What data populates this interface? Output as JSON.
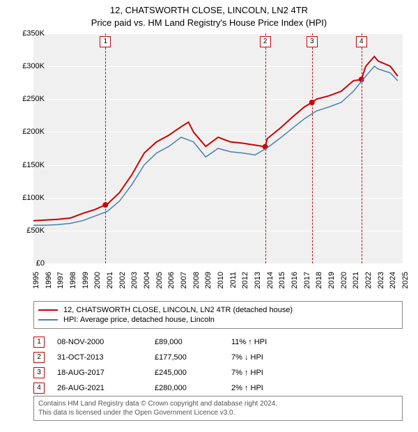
{
  "title_line1": "12, CHATSWORTH CLOSE, LINCOLN, LN2 4TR",
  "title_line2": "Price paid vs. HM Land Registry's House Price Index (HPI)",
  "chart": {
    "type": "line",
    "background_color": "#f0f0f0",
    "grid_color": "#ffffff",
    "ylim": [
      0,
      350000
    ],
    "ytick_step": 50000,
    "y_prefix": "£",
    "y_suffix": "K",
    "xlim": [
      1995,
      2025
    ],
    "xtick_step": 1,
    "series": [
      {
        "name": "12, CHATSWORTH CLOSE, LINCOLN, LN2 4TR (detached house)",
        "color": "#cc0000",
        "line_width": 2,
        "data": [
          [
            1995,
            65000
          ],
          [
            1996,
            66000
          ],
          [
            1997,
            67000
          ],
          [
            1998,
            69000
          ],
          [
            1999,
            76000
          ],
          [
            2000,
            82000
          ],
          [
            2000.85,
            89000
          ],
          [
            2001,
            90000
          ],
          [
            2002,
            108000
          ],
          [
            2003,
            135000
          ],
          [
            2004,
            168000
          ],
          [
            2005,
            185000
          ],
          [
            2006,
            195000
          ],
          [
            2007,
            208000
          ],
          [
            2007.6,
            215000
          ],
          [
            2008,
            200000
          ],
          [
            2009,
            178000
          ],
          [
            2010,
            192000
          ],
          [
            2011,
            185000
          ],
          [
            2012,
            183000
          ],
          [
            2013,
            180000
          ],
          [
            2013.83,
            177500
          ],
          [
            2014,
            190000
          ],
          [
            2015,
            205000
          ],
          [
            2016,
            222000
          ],
          [
            2017,
            238000
          ],
          [
            2017.63,
            245000
          ],
          [
            2018,
            250000
          ],
          [
            2019,
            255000
          ],
          [
            2020,
            262000
          ],
          [
            2021,
            278000
          ],
          [
            2021.65,
            280000
          ],
          [
            2022,
            300000
          ],
          [
            2022.7,
            315000
          ],
          [
            2023,
            308000
          ],
          [
            2024,
            300000
          ],
          [
            2024.6,
            285000
          ]
        ]
      },
      {
        "name": "HPI: Average price, detached house, Lincoln",
        "color": "#4a7fb0",
        "line_width": 1.5,
        "data": [
          [
            1995,
            58000
          ],
          [
            1996,
            58000
          ],
          [
            1997,
            59000
          ],
          [
            1998,
            61000
          ],
          [
            1999,
            65000
          ],
          [
            2000,
            72000
          ],
          [
            2001,
            79000
          ],
          [
            2002,
            95000
          ],
          [
            2003,
            120000
          ],
          [
            2004,
            150000
          ],
          [
            2005,
            168000
          ],
          [
            2006,
            178000
          ],
          [
            2007,
            192000
          ],
          [
            2008,
            185000
          ],
          [
            2009,
            162000
          ],
          [
            2010,
            175000
          ],
          [
            2011,
            170000
          ],
          [
            2012,
            168000
          ],
          [
            2013,
            165000
          ],
          [
            2014,
            176000
          ],
          [
            2015,
            190000
          ],
          [
            2016,
            205000
          ],
          [
            2017,
            220000
          ],
          [
            2018,
            232000
          ],
          [
            2019,
            238000
          ],
          [
            2020,
            245000
          ],
          [
            2021,
            262000
          ],
          [
            2022,
            285000
          ],
          [
            2022.7,
            300000
          ],
          [
            2023,
            296000
          ],
          [
            2024,
            290000
          ],
          [
            2024.6,
            278000
          ]
        ]
      }
    ],
    "markers": [
      {
        "n": "1",
        "year": 2000.85,
        "price": 89000
      },
      {
        "n": "2",
        "year": 2013.83,
        "price": 177500
      },
      {
        "n": "3",
        "year": 2017.63,
        "price": 245000
      },
      {
        "n": "4",
        "year": 2021.65,
        "price": 280000
      }
    ],
    "marker_dot_color": "#cc0000",
    "marker_dot_radius": 4
  },
  "legend": {
    "border_color": "#888888"
  },
  "transactions": [
    {
      "n": "1",
      "date": "08-NOV-2000",
      "price": "£89,000",
      "delta": "11% ↑ HPI"
    },
    {
      "n": "2",
      "date": "31-OCT-2013",
      "price": "£177,500",
      "delta": "7% ↓ HPI"
    },
    {
      "n": "3",
      "date": "18-AUG-2017",
      "price": "£245,000",
      "delta": "7% ↑ HPI"
    },
    {
      "n": "4",
      "date": "26-AUG-2021",
      "price": "£280,000",
      "delta": "2% ↑ HPI"
    }
  ],
  "footer_line1": "Contains HM Land Registry data © Crown copyright and database right 2024.",
  "footer_line2": "This data is licensed under the Open Government Licence v3.0."
}
